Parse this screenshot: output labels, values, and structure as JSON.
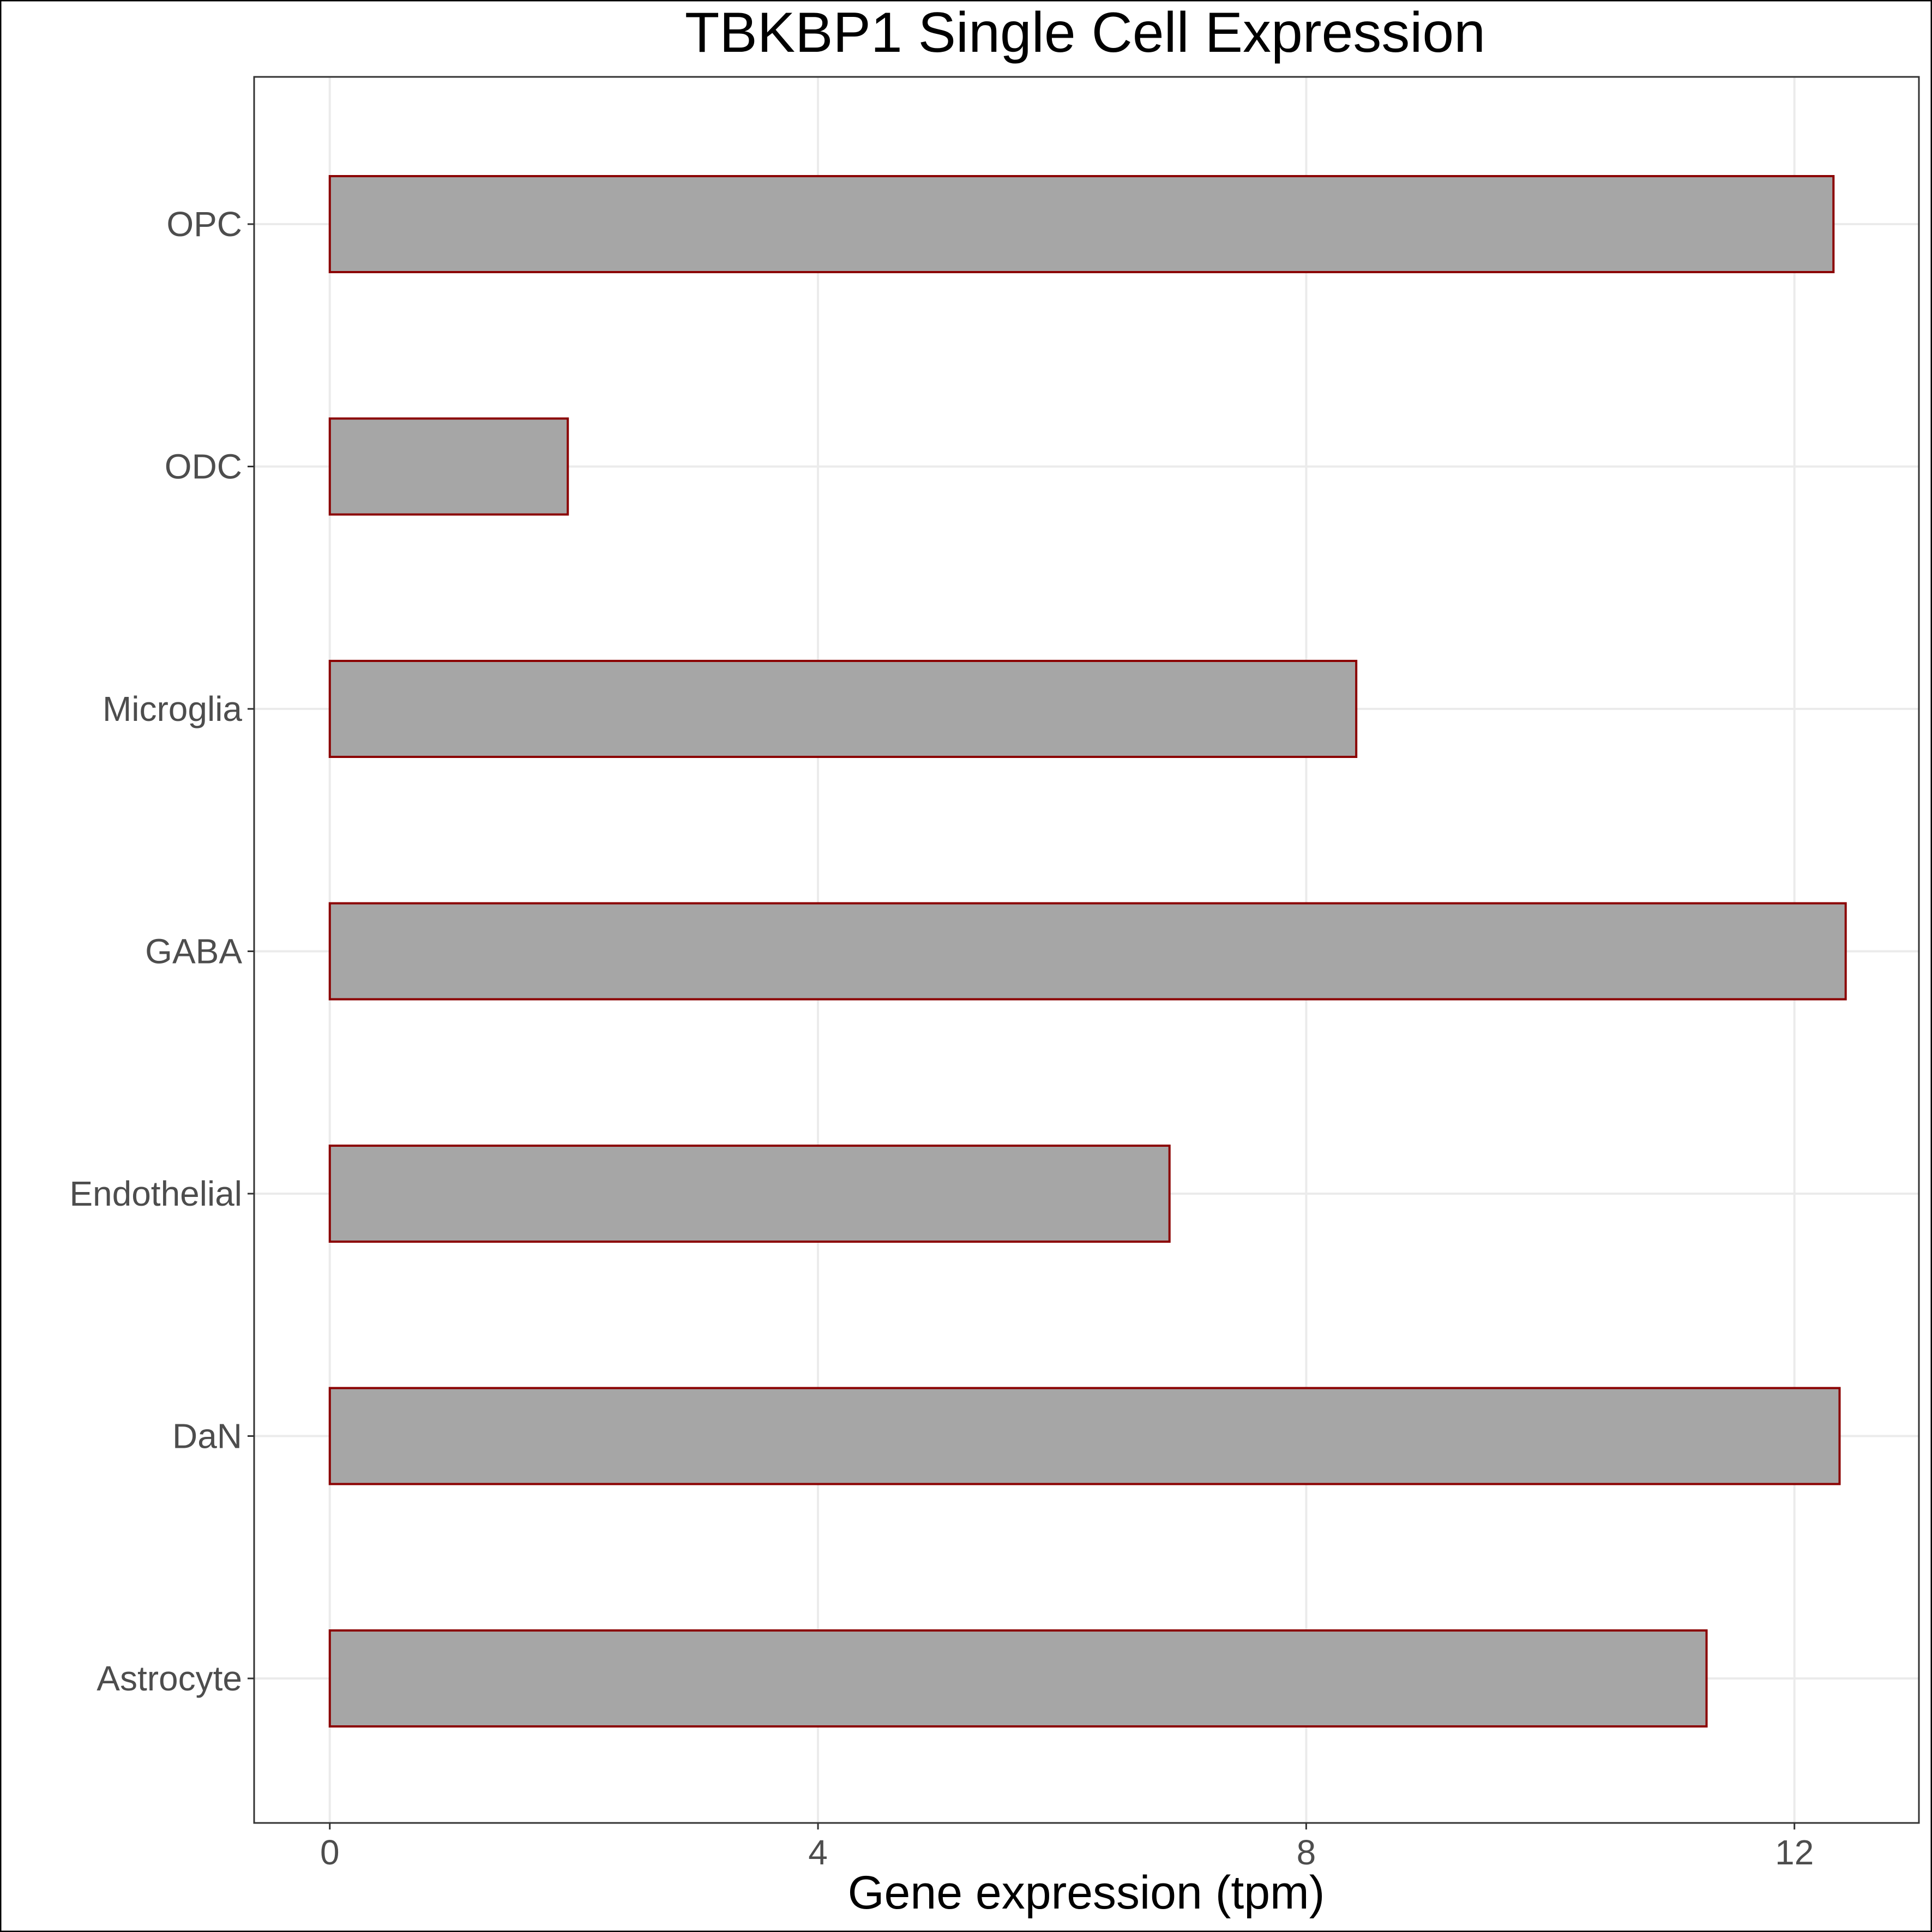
{
  "chart_data": {
    "type": "bar",
    "orientation": "horizontal",
    "title": "TBKBP1 Single Cell Expression",
    "xlabel": "Gene expression (tpm)",
    "ylabel": "",
    "categories": [
      "Astrocyte",
      "DaN",
      "Endothelial",
      "GABA",
      "Microglia",
      "ODC",
      "OPC"
    ],
    "values": [
      11.28,
      12.37,
      6.88,
      12.42,
      8.41,
      1.95,
      12.32
    ],
    "xlim": [
      -0.62,
      13.02
    ],
    "xticks": [
      0,
      4,
      8,
      12
    ],
    "grid": true,
    "legend": "none",
    "colors": {
      "bar_fill": "#a6a6a6",
      "bar_outline": "#8b0000",
      "grid": "#ebebeb",
      "panel_border": "#333333",
      "tick_text": "#4d4d4d"
    }
  }
}
